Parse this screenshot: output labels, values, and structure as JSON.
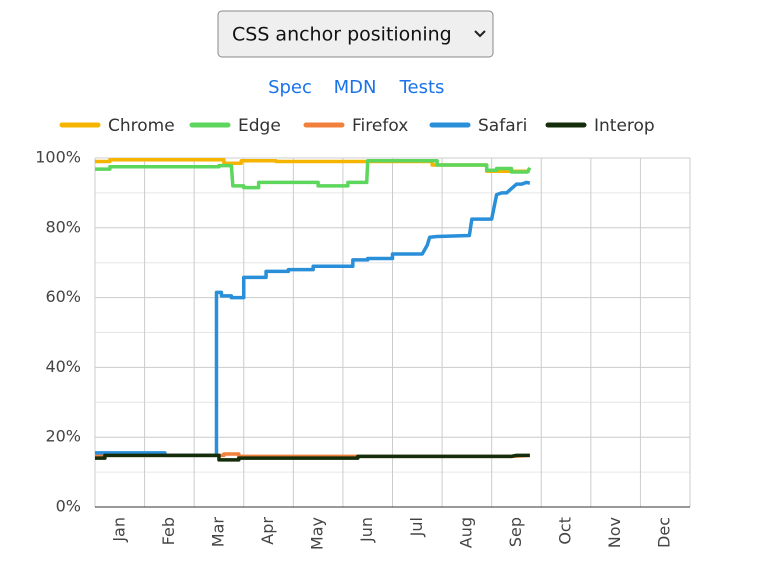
{
  "page": {
    "feature_select": "CSS anchor positioning",
    "links": [
      "Spec",
      "MDN",
      "Tests"
    ]
  },
  "chart_data": {
    "type": "line",
    "xlim": [
      0,
      12
    ],
    "xticks": [
      {
        "value": 0.5,
        "label": "Jan"
      },
      {
        "value": 1.5,
        "label": "Feb"
      },
      {
        "value": 2.5,
        "label": "Mar"
      },
      {
        "value": 3.5,
        "label": "Apr"
      },
      {
        "value": 4.5,
        "label": "May"
      },
      {
        "value": 5.5,
        "label": "Jun"
      },
      {
        "value": 6.5,
        "label": "Jul"
      },
      {
        "value": 7.5,
        "label": "Aug"
      },
      {
        "value": 8.5,
        "label": "Sep"
      },
      {
        "value": 9.5,
        "label": "Oct"
      },
      {
        "value": 10.5,
        "label": "Nov"
      },
      {
        "value": 11.5,
        "label": "Dec"
      }
    ],
    "ylim": [
      0,
      100
    ],
    "yticks": [
      {
        "value": 0,
        "label": "0%"
      },
      {
        "value": 20,
        "label": "20%"
      },
      {
        "value": 40,
        "label": "40%"
      },
      {
        "value": 60,
        "label": "60%"
      },
      {
        "value": 80,
        "label": "80%"
      },
      {
        "value": 100,
        "label": "100%"
      }
    ],
    "grid": true,
    "series": [
      {
        "name": "Chrome",
        "color": "#f4b400",
        "x": [
          0,
          0.3,
          0.3,
          2.6,
          2.6,
          2.95,
          2.95,
          3.65,
          3.65,
          6.8,
          6.8,
          7.9,
          7.9,
          8.77
        ],
        "values": [
          99,
          99,
          99.5,
          99.5,
          98.5,
          98.5,
          99.2,
          99.2,
          99,
          99,
          98,
          98,
          96.2,
          96.2
        ]
      },
      {
        "name": "Edge",
        "color": "#5cd65c",
        "x": [
          0,
          0.3,
          0.3,
          2.5,
          2.5,
          2.75,
          2.78,
          3.0,
          3.0,
          3.3,
          3.3,
          4.5,
          4.5,
          5.1,
          5.1,
          5.48,
          5.5,
          6.9,
          6.9,
          7.9,
          7.9,
          8.1,
          8.1,
          8.4,
          8.4,
          8.72,
          8.77
        ],
        "values": [
          96.8,
          96.8,
          97.5,
          97.5,
          97.8,
          97.8,
          92,
          92,
          91.5,
          91.5,
          93,
          93,
          92,
          92,
          93,
          93,
          99.2,
          99.2,
          98,
          98,
          96.5,
          96.5,
          97,
          97,
          96,
          96,
          97.2
        ]
      },
      {
        "name": "Firefox",
        "color": "#f0803c",
        "x": [
          0,
          2.6,
          2.6,
          2.9,
          2.9,
          8.4,
          8.77
        ],
        "values": [
          14.8,
          14.8,
          15.2,
          15.2,
          14.5,
          14.5,
          14.8
        ]
      },
      {
        "name": "Safari",
        "color": "#2a8fd9",
        "x": [
          0,
          1.41,
          1.41,
          2.45,
          2.45,
          2.55,
          2.55,
          2.75,
          2.75,
          3.0,
          3.0,
          3.45,
          3.45,
          3.9,
          3.9,
          4.4,
          4.4,
          5.2,
          5.2,
          5.5,
          5.5,
          6.0,
          6.0,
          6.6,
          6.7,
          6.75,
          6.9,
          7.55,
          7.6,
          8.0,
          8.1,
          8.2,
          8.3,
          8.5,
          8.6,
          8.7,
          8.77
        ],
        "values": [
          15.5,
          15.5,
          14.8,
          14.8,
          61.5,
          61.5,
          60.5,
          60.5,
          60,
          60,
          65.8,
          65.8,
          67.5,
          67.5,
          68,
          68,
          69,
          69,
          70.8,
          70.8,
          71.2,
          71.2,
          72.5,
          72.5,
          75,
          77.3,
          77.5,
          77.8,
          82.5,
          82.5,
          89.5,
          90,
          90,
          92.5,
          92.5,
          93,
          92.8
        ]
      },
      {
        "name": "Interop",
        "color": "#142d0a",
        "x": [
          0,
          0.2,
          0.2,
          2.5,
          2.5,
          2.9,
          2.9,
          5.3,
          5.3,
          8.4,
          8.5,
          8.77
        ],
        "values": [
          14,
          14,
          14.8,
          14.8,
          13.5,
          13.5,
          14,
          14,
          14.5,
          14.5,
          14.8,
          14.8
        ]
      }
    ]
  }
}
